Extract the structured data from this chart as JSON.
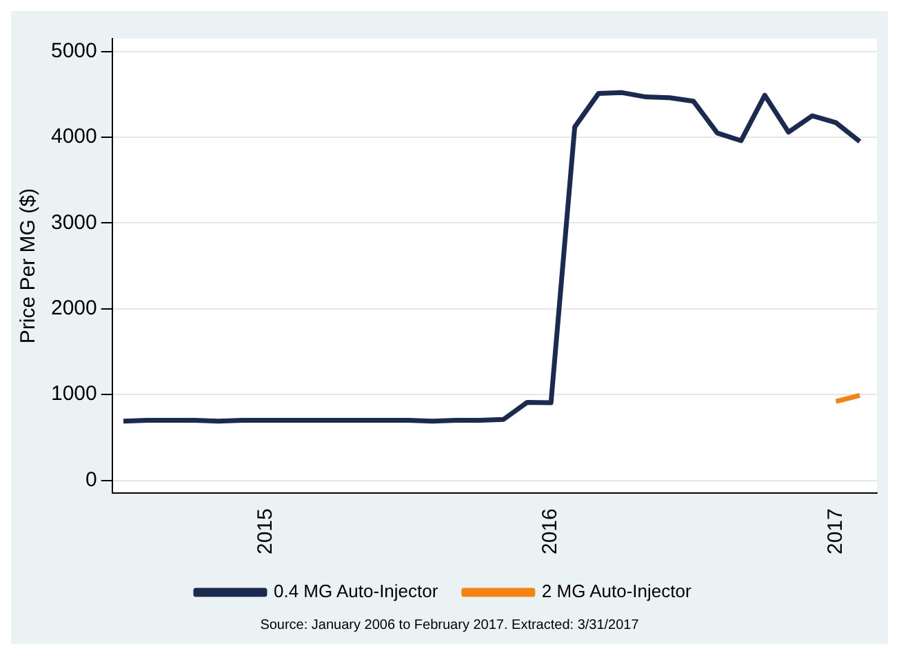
{
  "chart_data": {
    "type": "line",
    "ylabel": "Price Per MG ($)",
    "x": [
      "2014-07",
      "2014-08",
      "2014-09",
      "2014-10",
      "2014-11",
      "2014-12",
      "2015-01",
      "2015-02",
      "2015-03",
      "2015-04",
      "2015-05",
      "2015-06",
      "2015-07",
      "2015-08",
      "2015-09",
      "2015-10",
      "2015-11",
      "2015-12",
      "2016-01",
      "2016-02",
      "2016-03",
      "2016-04",
      "2016-05",
      "2016-06",
      "2016-07",
      "2016-08",
      "2016-09",
      "2016-10",
      "2016-11",
      "2016-12",
      "2017-01",
      "2017-02"
    ],
    "series": [
      {
        "name": "0.4 MG Auto-Injector",
        "color": "#1a2a50",
        "values": [
          690,
          700,
          700,
          700,
          690,
          700,
          700,
          700,
          700,
          700,
          700,
          700,
          700,
          690,
          700,
          700,
          710,
          910,
          905,
          4120,
          4510,
          4520,
          4470,
          4460,
          4420,
          4050,
          3960,
          4490,
          4060,
          4250,
          4170,
          3950
        ]
      },
      {
        "name": "2 MG Auto-Injector",
        "color": "#f7820f",
        "values": [
          null,
          null,
          null,
          null,
          null,
          null,
          null,
          null,
          null,
          null,
          null,
          null,
          null,
          null,
          null,
          null,
          null,
          null,
          null,
          null,
          null,
          null,
          null,
          null,
          null,
          null,
          null,
          null,
          null,
          null,
          920,
          990
        ]
      }
    ],
    "xlim": [
      "2014-06-17",
      "2017-02-23"
    ],
    "xticks": [
      "2015",
      "2016",
      "2017"
    ],
    "ylim": [
      -150,
      5150
    ],
    "yticks": [
      0,
      1000,
      2000,
      3000,
      4000,
      5000
    ],
    "grid": "y",
    "legend": "bottom",
    "line_style": "solid",
    "marker": "none",
    "annotations": [
      "Source: January 2006 to February 2017. Extracted: 3/31/2017"
    ]
  }
}
